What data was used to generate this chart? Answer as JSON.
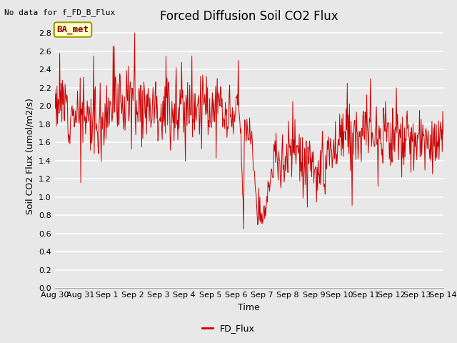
{
  "title": "Forced Diffusion Soil CO2 Flux",
  "xlabel": "Time",
  "ylabel": "Soil CO2 Flux (umol/m2/s)",
  "no_data_text": "No data for f_FD_B_Flux",
  "legend_label": "FD_Flux",
  "legend_color": "#cc0000",
  "line_color": "#cc0000",
  "bg_color": "#e8e8e8",
  "ylim": [
    0.0,
    2.9
  ],
  "yticks": [
    0.0,
    0.2,
    0.4,
    0.6,
    0.8,
    1.0,
    1.2,
    1.4,
    1.6,
    1.8,
    2.0,
    2.2,
    2.4,
    2.6,
    2.8
  ],
  "box_label": "BA_met",
  "box_facecolor": "#ffffcc",
  "box_edgecolor": "#999900",
  "box_textcolor": "#8b0000",
  "title_fontsize": 12,
  "axis_fontsize": 9,
  "tick_fontsize": 8,
  "no_data_fontsize": 8
}
